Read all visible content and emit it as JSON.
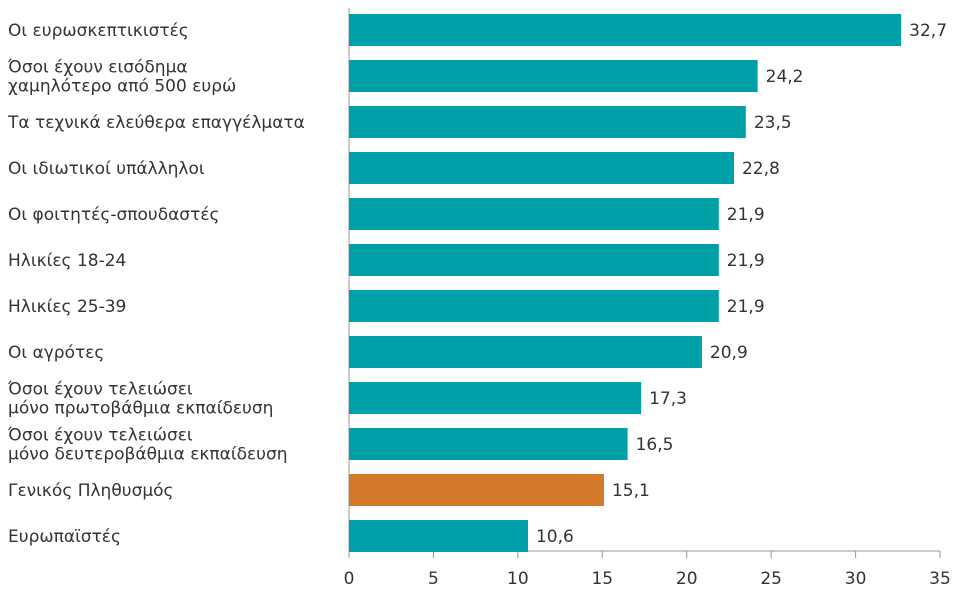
{
  "chart_data": {
    "type": "barh",
    "categories": [
      "Οι ευρωσκεπτικιστές",
      "Όσοι έχουν εισόδημα\nχαμηλότερο από 500 ευρώ",
      "Τα τεχνικά ελεύθερα επαγγέλματα",
      "Οι ιδιωτικοί υπάλληλοι",
      "Οι φοιτητές-σπουδαστές",
      "Ηλικίες 18-24",
      "Ηλικίες 25-39",
      "Οι αγρότες",
      "Όσοι έχουν τελειώσει\nμόνο πρωτοβάθμια εκπαίδευση",
      "Όσοι έχουν τελειώσει\nμόνο δευτεροβάθμια εκπαίδευση",
      "Γενικός Πληθυσμός",
      "Ευρωπαϊστές"
    ],
    "values": [
      32.7,
      24.2,
      23.5,
      22.8,
      21.9,
      21.9,
      21.9,
      20.9,
      17.3,
      16.5,
      15.1,
      10.6
    ],
    "value_labels": [
      "32,7",
      "24,2",
      "23,5",
      "22,8",
      "21,9",
      "21,9",
      "21,9",
      "20,9",
      "17,3",
      "16,5",
      "15,1",
      "10,6"
    ],
    "colors": [
      "#00a0a8",
      "#00a0a8",
      "#00a0a8",
      "#00a0a8",
      "#00a0a8",
      "#00a0a8",
      "#00a0a8",
      "#00a0a8",
      "#00a0a8",
      "#00a0a8",
      "#d4782a",
      "#00a0a8"
    ],
    "xlim": [
      0,
      35
    ],
    "xticks": [
      0,
      5,
      10,
      15,
      20,
      25,
      30,
      35
    ]
  }
}
